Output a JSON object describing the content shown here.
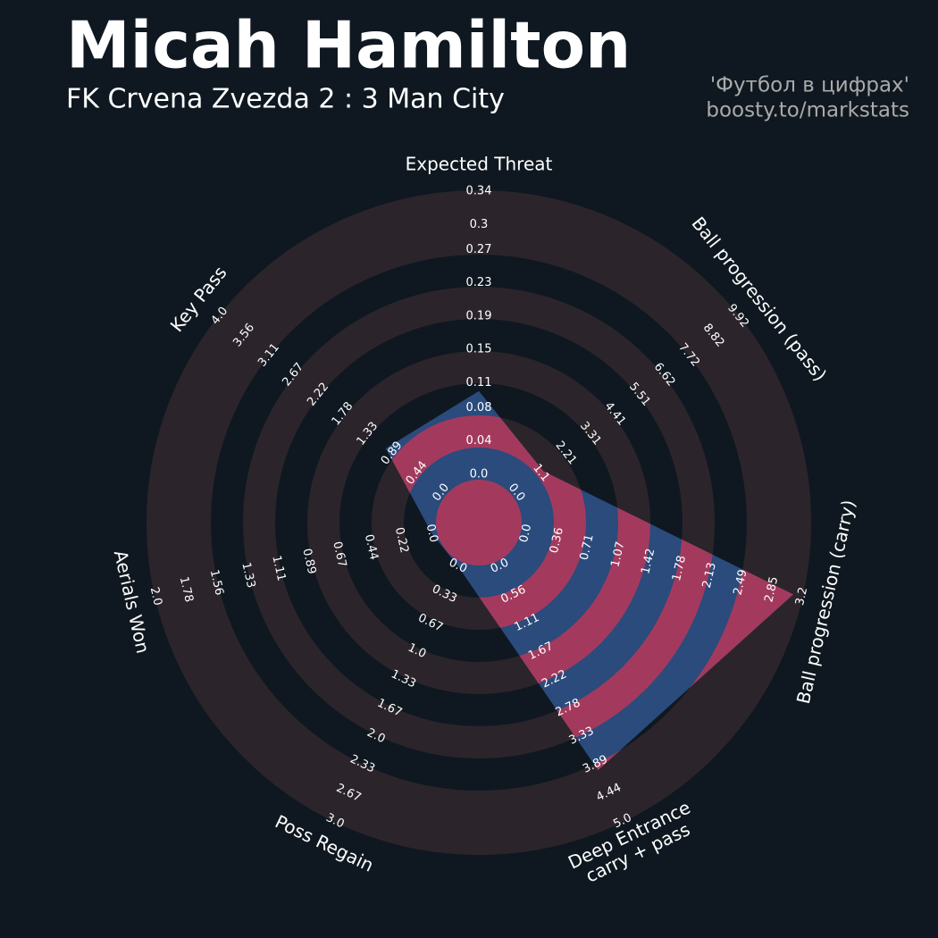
{
  "chart_data": {
    "type": "radar",
    "title": "Micah Hamilton",
    "subtitle": "FK Crvena Zvezda 2 : 3 Man City",
    "annotations": [
      "'Футбол в цифрах'",
      "boosty.to/markstats"
    ],
    "categories": [
      "Expected Threat",
      "Ball progression (pass)",
      "Ball progression (carry)",
      "Deep Entrance\ncarry + pass",
      "Poss Regain",
      "Aerials Won",
      "Key Pass"
    ],
    "values": [
      0.1,
      1.2,
      3.1,
      4.0,
      0,
      0,
      1.0
    ],
    "lims": [
      [
        0,
        0.34
      ],
      [
        0,
        9.92
      ],
      [
        0,
        3.2
      ],
      [
        0,
        5
      ],
      [
        0,
        3
      ],
      [
        0,
        2
      ],
      [
        0,
        4
      ]
    ],
    "ticks": [
      [
        {
          "value": 0,
          "label": "0.0"
        },
        0.04,
        0.08,
        0.11,
        0.15,
        0.19,
        0.23,
        0.27,
        0.3,
        0.34
      ],
      [
        {
          "value": 0,
          "label": "0.0"
        },
        1.1,
        2.21,
        3.31,
        4.41,
        5.51,
        6.62,
        7.72,
        8.82,
        9.92
      ],
      [
        {
          "value": 0,
          "label": "0.0"
        },
        0.36,
        0.71,
        1.07,
        1.42,
        1.78,
        2.13,
        2.49,
        2.85,
        3.2
      ],
      [
        {
          "value": 0,
          "label": "0.0"
        },
        0.56,
        1.11,
        1.67,
        2.22,
        2.78,
        3.33,
        3.89,
        4.44,
        {
          "value": 5,
          "label": "5.0"
        }
      ],
      [
        {
          "value": 0,
          "label": "0.0"
        },
        0.33,
        0.67,
        {
          "value": 1,
          "label": "1.0"
        },
        1.33,
        1.67,
        {
          "value": 2,
          "label": "2.0"
        },
        2.33,
        2.67,
        {
          "value": 3,
          "label": "3.0"
        }
      ],
      [
        {
          "value": 0,
          "label": "0.0"
        },
        0.22,
        0.44,
        0.67,
        0.89,
        1.11,
        1.33,
        1.56,
        1.78,
        {
          "value": 2,
          "label": "2.0"
        }
      ],
      [
        {
          "value": 0,
          "label": "0.0"
        },
        0.44,
        0.89,
        1.33,
        1.78,
        2.22,
        2.67,
        3.11,
        3.56,
        {
          "value": 4,
          "label": "4.0"
        }
      ]
    ],
    "color": "#2a4b7c",
    "compare_color": "#a33a5e",
    "ring_color": "#2b252b"
  }
}
